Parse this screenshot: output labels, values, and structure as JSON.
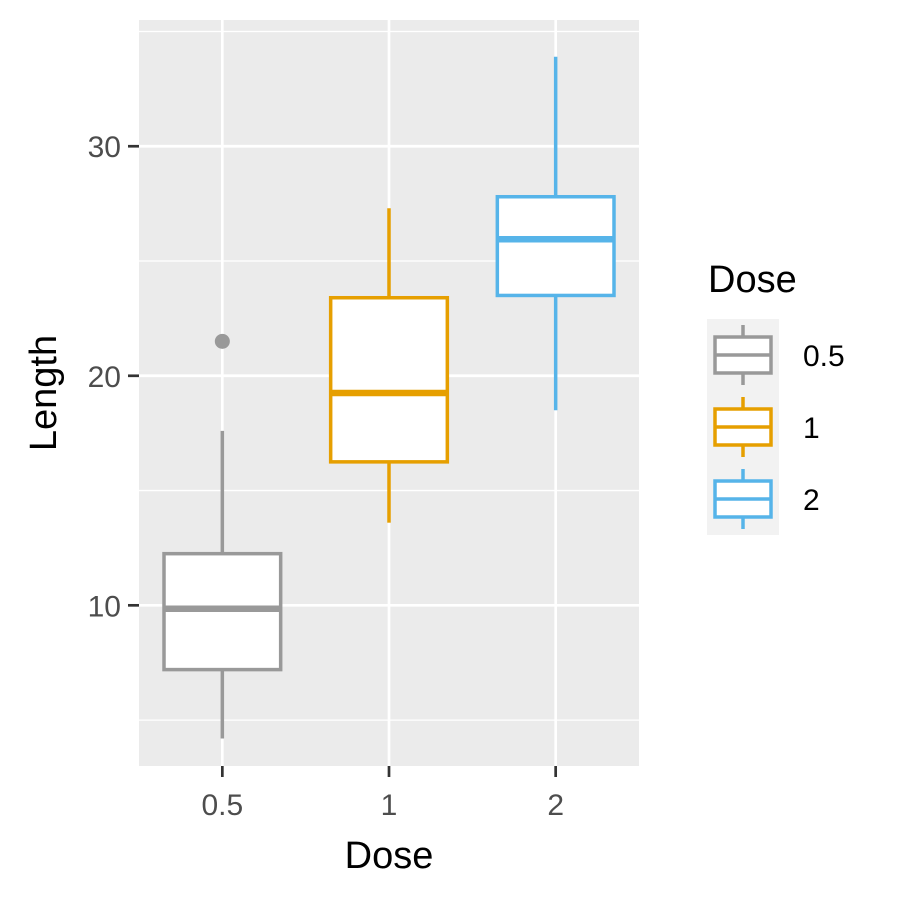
{
  "chart_data": {
    "type": "boxplot",
    "xlabel": "Dose",
    "ylabel": "Length",
    "categories": [
      "0.5",
      "1",
      "2"
    ],
    "y_ticks": [
      10,
      20,
      30
    ],
    "ylim": [
      3,
      35.5
    ],
    "grid": true,
    "legend": {
      "title": "Dose",
      "placement": "right",
      "entries": [
        "0.5",
        "1",
        "2"
      ]
    },
    "colors": {
      "0.5": "#999999",
      "1": "#E69F00",
      "2": "#56B4E9"
    },
    "panel_background": "#ebebeb",
    "series": [
      {
        "category": "0.5",
        "whisker_low": 4.2,
        "q1": 7.2,
        "median": 9.85,
        "q3": 12.25,
        "whisker_high": 17.6,
        "outliers": [
          21.5
        ]
      },
      {
        "category": "1",
        "whisker_low": 13.6,
        "q1": 16.25,
        "median": 19.25,
        "q3": 23.4,
        "whisker_high": 27.3,
        "outliers": []
      },
      {
        "category": "2",
        "whisker_low": 18.5,
        "q1": 23.5,
        "median": 25.95,
        "q3": 27.8,
        "whisker_high": 33.9,
        "outliers": []
      }
    ]
  }
}
